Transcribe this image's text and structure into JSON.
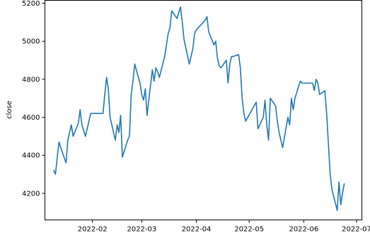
{
  "chart_data": {
    "type": "line",
    "title": "",
    "xlabel": "",
    "ylabel": "close",
    "xlim": [
      "2022-01-05",
      "2022-07-04"
    ],
    "ylim": [
      4060,
      5215
    ],
    "grid": false,
    "line_color": "#1f77b4",
    "x_ticks": [
      {
        "date": "2022-02-01",
        "label": "2022-02"
      },
      {
        "date": "2022-03-01",
        "label": "2022-03"
      },
      {
        "date": "2022-04-01",
        "label": "2022-04"
      },
      {
        "date": "2022-05-01",
        "label": "2022-05"
      },
      {
        "date": "2022-06-01",
        "label": "2022-06"
      },
      {
        "date": "2022-07-01",
        "label": "2022-07"
      }
    ],
    "y_ticks": [
      {
        "value": 4200,
        "label": "4200"
      },
      {
        "value": 4400,
        "label": "4400"
      },
      {
        "value": 4600,
        "label": "4600"
      },
      {
        "value": 4800,
        "label": "4800"
      },
      {
        "value": 5000,
        "label": "5000"
      },
      {
        "value": 5200,
        "label": "5200"
      }
    ],
    "series": [
      {
        "x": [
          "2022-01-10",
          "2022-01-11",
          "2022-01-12",
          "2022-01-13",
          "2022-01-14",
          "2022-01-17",
          "2022-01-18",
          "2022-01-19",
          "2022-01-20",
          "2022-01-21",
          "2022-01-24",
          "2022-01-25",
          "2022-01-26",
          "2022-01-27",
          "2022-01-28",
          "2022-01-31",
          "2022-02-07",
          "2022-02-08",
          "2022-02-09",
          "2022-02-10",
          "2022-02-11",
          "2022-02-14",
          "2022-02-15",
          "2022-02-16",
          "2022-02-17",
          "2022-02-18",
          "2022-02-21",
          "2022-02-22",
          "2022-02-23",
          "2022-02-24",
          "2022-02-25",
          "2022-02-28",
          "2022-03-01",
          "2022-03-02",
          "2022-03-03",
          "2022-03-04",
          "2022-03-07",
          "2022-03-08",
          "2022-03-09",
          "2022-03-10",
          "2022-03-11",
          "2022-03-14",
          "2022-03-15",
          "2022-03-16",
          "2022-03-17",
          "2022-03-18",
          "2022-03-21",
          "2022-03-22",
          "2022-03-23",
          "2022-03-24",
          "2022-03-25",
          "2022-03-28",
          "2022-03-29",
          "2022-03-30",
          "2022-03-31",
          "2022-04-01",
          "2022-04-06",
          "2022-04-07",
          "2022-04-08",
          "2022-04-11",
          "2022-04-12",
          "2022-04-13",
          "2022-04-14",
          "2022-04-15",
          "2022-04-18",
          "2022-04-19",
          "2022-04-20",
          "2022-04-21",
          "2022-04-22",
          "2022-04-25",
          "2022-04-26",
          "2022-04-27",
          "2022-04-28",
          "2022-04-29",
          "2022-05-05",
          "2022-05-06",
          "2022-05-09",
          "2022-05-10",
          "2022-05-11",
          "2022-05-12",
          "2022-05-13",
          "2022-05-16",
          "2022-05-17",
          "2022-05-18",
          "2022-05-19",
          "2022-05-20",
          "2022-05-23",
          "2022-05-24",
          "2022-05-25",
          "2022-05-26",
          "2022-05-27",
          "2022-05-30",
          "2022-05-31",
          "2022-06-06",
          "2022-06-07",
          "2022-06-08",
          "2022-06-09",
          "2022-06-10",
          "2022-06-13",
          "2022-06-14",
          "2022-06-15",
          "2022-06-16",
          "2022-06-17",
          "2022-06-20",
          "2022-06-21",
          "2022-06-22",
          "2022-06-23",
          "2022-06-24"
        ],
        "values": [
          4320,
          4300,
          4390,
          4470,
          4440,
          4360,
          4480,
          4520,
          4560,
          4500,
          4570,
          4640,
          4560,
          4530,
          4500,
          4620,
          4620,
          4720,
          4810,
          4750,
          4600,
          4480,
          4560,
          4520,
          4610,
          4390,
          4480,
          4500,
          4720,
          4790,
          4880,
          4780,
          4720,
          4690,
          4750,
          4610,
          4850,
          4790,
          4860,
          4840,
          4810,
          4920,
          4980,
          5040,
          5070,
          5160,
          5120,
          5150,
          5180,
          5100,
          5010,
          4880,
          4920,
          4960,
          5040,
          5060,
          5110,
          5130,
          5050,
          4980,
          5000,
          4910,
          4870,
          4860,
          4900,
          4780,
          4880,
          4920,
          4920,
          4930,
          4860,
          4700,
          4620,
          4580,
          4680,
          4540,
          4600,
          4690,
          4560,
          4480,
          4700,
          4660,
          4580,
          4520,
          4480,
          4440,
          4600,
          4560,
          4700,
          4640,
          4700,
          4790,
          4780,
          4780,
          4740,
          4800,
          4780,
          4720,
          4740,
          4620,
          4460,
          4300,
          4220,
          4110,
          4260,
          4140,
          4200,
          4250
        ]
      }
    ]
  }
}
